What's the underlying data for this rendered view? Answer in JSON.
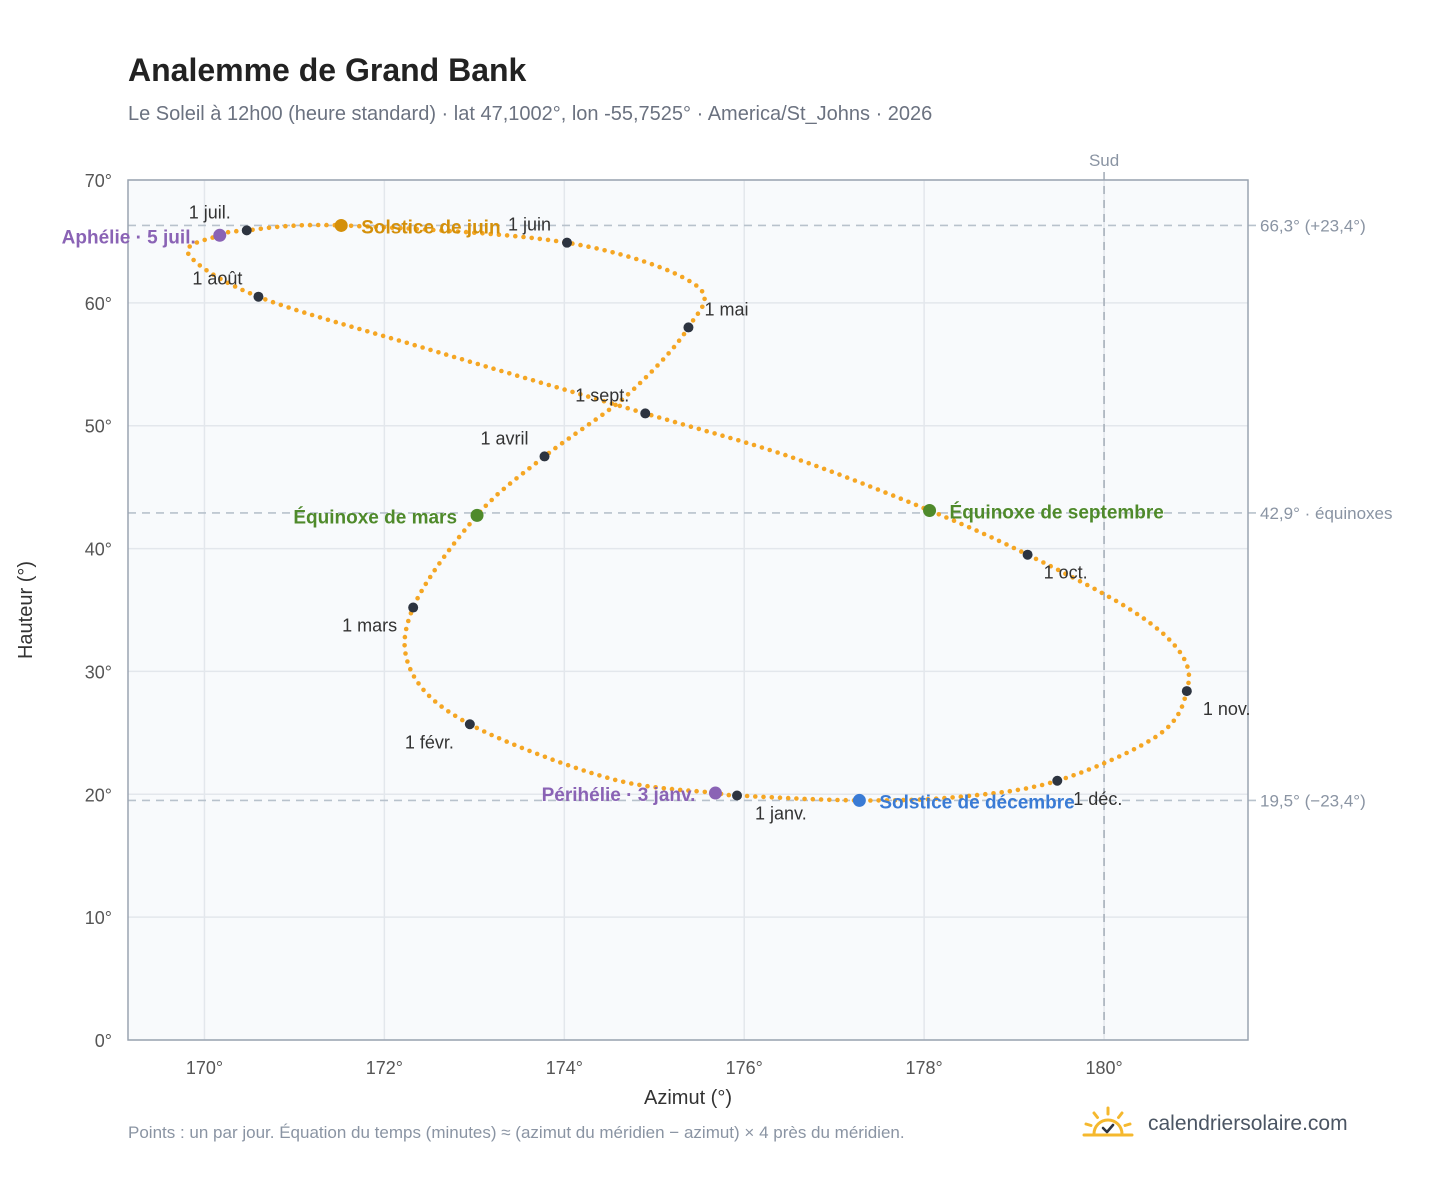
{
  "title": "Analemme de Grand Bank",
  "subtitle": "Le Soleil à 12h00 (heure standard) · lat 47,1002°, lon -55,7525° · America/St_Johns · 2026",
  "footnote": "Points : un par jour. Équation du temps (minutes) ≈ (azimut du méridien − azimut) × 4 près du méridien.",
  "brand": {
    "name": "calendriersolaire.com",
    "icon": "sun-check-icon",
    "icon_color": "#f5b82e"
  },
  "colors": {
    "curve": "#f5a623",
    "month_dot": "#2d3440",
    "june_solstice": "#d4900a",
    "december_solstice": "#3a7bd5",
    "equinox": "#4f8a2b",
    "perihelion_aphelion": "#8a63b5",
    "reference_line": "#b8c2cc",
    "plot_background": "#f8fafc",
    "frame": "#9aa4b1"
  },
  "chart_data": {
    "type": "scatter",
    "xlabel": "Azimut (°)",
    "ylabel": "Hauteur (°)",
    "xlim": [
      169.15,
      181.6
    ],
    "ylim": [
      0,
      70
    ],
    "x_ticks": [
      {
        "value": 170,
        "label": "170°"
      },
      {
        "value": 172,
        "label": "172°"
      },
      {
        "value": 174,
        "label": "174°"
      },
      {
        "value": 176,
        "label": "176°"
      },
      {
        "value": 178,
        "label": "178°"
      },
      {
        "value": 180,
        "label": "180°"
      }
    ],
    "y_ticks": [
      {
        "value": 0,
        "label": "0°"
      },
      {
        "value": 10,
        "label": "10°"
      },
      {
        "value": 20,
        "label": "20°"
      },
      {
        "value": 30,
        "label": "30°"
      },
      {
        "value": 40,
        "label": "40°"
      },
      {
        "value": 50,
        "label": "50°"
      },
      {
        "value": 60,
        "label": "60°"
      },
      {
        "value": 70,
        "label": "70°"
      }
    ],
    "grid": true,
    "meridian": {
      "x": 180,
      "label": "Sud"
    },
    "reference_lines": [
      {
        "y": 66.3,
        "label": "66,3° (+23,4°)"
      },
      {
        "y": 42.9,
        "label": "42,9° · équinoxes"
      },
      {
        "y": 19.5,
        "label": "19,5° (−23,4°)"
      }
    ],
    "month_points": [
      {
        "label": "1 janv.",
        "az": 175.92,
        "alt": 19.9,
        "anchor": "start",
        "dx": 18,
        "dy": 24
      },
      {
        "label": "1 févr.",
        "az": 172.95,
        "alt": 25.7,
        "anchor": "end",
        "dx": -16,
        "dy": 24
      },
      {
        "label": "1 mars",
        "az": 172.32,
        "alt": 35.2,
        "anchor": "end",
        "dx": -16,
        "dy": 24
      },
      {
        "label": "1 avril",
        "az": 173.78,
        "alt": 47.5,
        "anchor": "end",
        "dx": -16,
        "dy": -12
      },
      {
        "label": "1 mai",
        "az": 175.38,
        "alt": 58.0,
        "anchor": "start",
        "dx": 16,
        "dy": -12
      },
      {
        "label": "1 juin",
        "az": 174.03,
        "alt": 64.9,
        "anchor": "end",
        "dx": -16,
        "dy": -12
      },
      {
        "label": "1 juil.",
        "az": 170.47,
        "alt": 65.9,
        "anchor": "end",
        "dx": -16,
        "dy": -12
      },
      {
        "label": "1 août",
        "az": 170.6,
        "alt": 60.5,
        "anchor": "end",
        "dx": -16,
        "dy": -12
      },
      {
        "label": "1 sept.",
        "az": 174.9,
        "alt": 51.0,
        "anchor": "end",
        "dx": -16,
        "dy": -12
      },
      {
        "label": "1 oct.",
        "az": 179.15,
        "alt": 39.5,
        "anchor": "start",
        "dx": 16,
        "dy": 24
      },
      {
        "label": "1 nov.",
        "az": 180.92,
        "alt": 28.4,
        "anchor": "start",
        "dx": 16,
        "dy": 24
      },
      {
        "label": "1 déc.",
        "az": 179.48,
        "alt": 21.1,
        "anchor": "start",
        "dx": 16,
        "dy": 24
      }
    ],
    "events": [
      {
        "label": "Solstice de juin",
        "az": 171.52,
        "alt": 66.3,
        "color_key": "june_solstice",
        "anchor": "start",
        "dx": 20,
        "dy": 8
      },
      {
        "label": "Aphélie · 5 juil.",
        "az": 170.17,
        "alt": 65.5,
        "color_key": "perihelion_aphelion",
        "anchor": "end",
        "dx": -24,
        "dy": 8
      },
      {
        "label": "Équinoxe de mars",
        "az": 173.03,
        "alt": 42.7,
        "color_key": "equinox",
        "anchor": "end",
        "dx": -20,
        "dy": 8
      },
      {
        "label": "Équinoxe de septembre",
        "az": 178.06,
        "alt": 43.1,
        "color_key": "equinox",
        "anchor": "start",
        "dx": 20,
        "dy": 8
      },
      {
        "label": "Périhélie · 3 janv.",
        "az": 175.68,
        "alt": 20.1,
        "color_key": "perihelion_aphelion",
        "anchor": "end",
        "dx": -20,
        "dy": 8
      },
      {
        "label": "Solstice de décembre",
        "az": 177.28,
        "alt": 19.5,
        "color_key": "december_solstice",
        "anchor": "start",
        "dx": 20,
        "dy": 8
      }
    ],
    "curve_anchor_points": [
      {
        "az": 175.92,
        "alt": 19.9
      },
      {
        "az": 175.68,
        "alt": 20.1
      },
      {
        "az": 174.5,
        "alt": 21.3
      },
      {
        "az": 172.95,
        "alt": 25.7
      },
      {
        "az": 172.3,
        "alt": 30.0
      },
      {
        "az": 172.32,
        "alt": 35.2
      },
      {
        "az": 173.03,
        "alt": 42.7
      },
      {
        "az": 173.78,
        "alt": 47.5
      },
      {
        "az": 174.7,
        "alt": 52.5
      },
      {
        "az": 175.38,
        "alt": 58.0
      },
      {
        "az": 175.45,
        "alt": 61.5
      },
      {
        "az": 174.03,
        "alt": 64.9
      },
      {
        "az": 171.52,
        "alt": 66.3
      },
      {
        "az": 170.47,
        "alt": 65.9
      },
      {
        "az": 170.17,
        "alt": 65.5
      },
      {
        "az": 169.82,
        "alt": 64.0
      },
      {
        "az": 170.6,
        "alt": 60.5
      },
      {
        "az": 172.5,
        "alt": 56.2
      },
      {
        "az": 174.9,
        "alt": 51.0
      },
      {
        "az": 176.5,
        "alt": 47.5
      },
      {
        "az": 178.06,
        "alt": 43.1
      },
      {
        "az": 179.15,
        "alt": 39.5
      },
      {
        "az": 180.3,
        "alt": 35.0
      },
      {
        "az": 180.85,
        "alt": 31.5
      },
      {
        "az": 180.92,
        "alt": 28.4
      },
      {
        "az": 180.6,
        "alt": 24.8
      },
      {
        "az": 179.48,
        "alt": 21.1
      },
      {
        "az": 178.4,
        "alt": 19.8
      },
      {
        "az": 177.28,
        "alt": 19.5
      },
      {
        "az": 175.92,
        "alt": 19.9
      }
    ]
  }
}
